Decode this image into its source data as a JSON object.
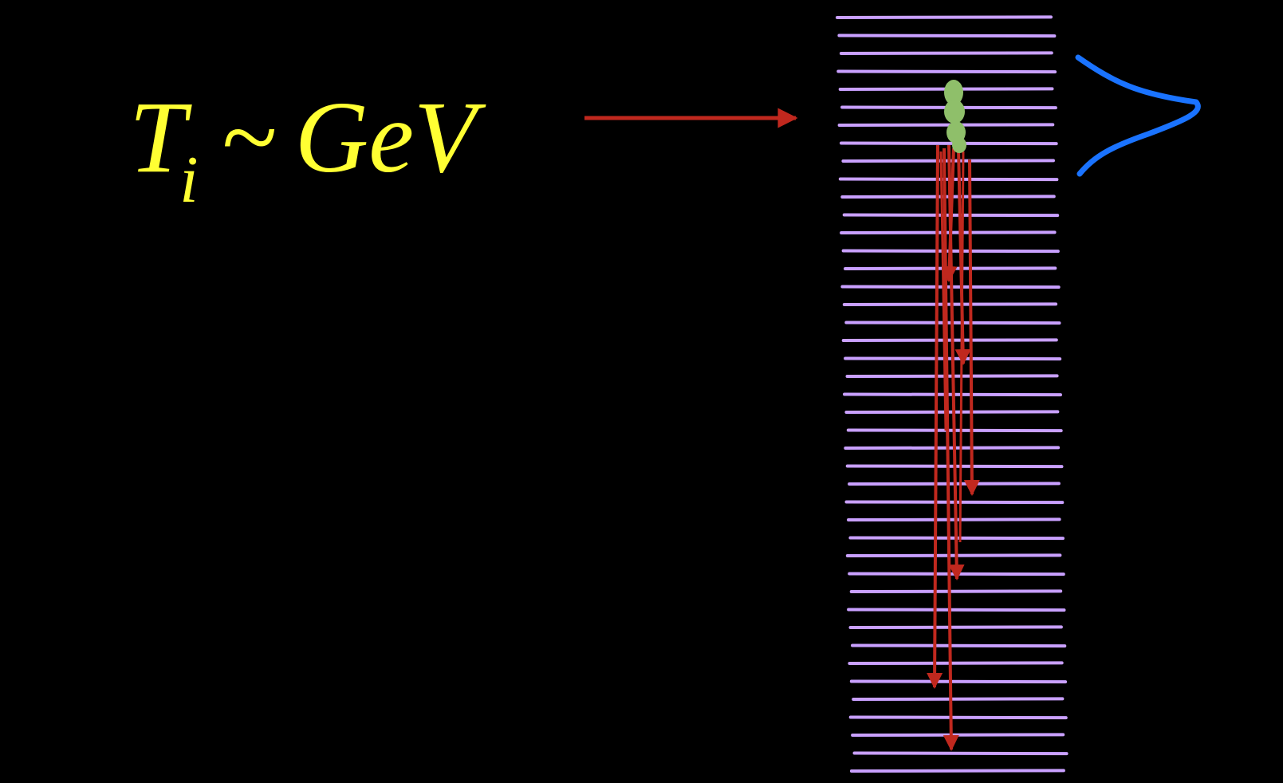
{
  "formula": {
    "variable": "T",
    "subscript": "i",
    "relation": "~",
    "unit": "GeV"
  },
  "colors": {
    "background": "#000000",
    "text": "#ffff33",
    "arrows": "#c0281e",
    "lines": "#c9a0ff",
    "source_blob": "#8fbf6a",
    "profile_curve": "#1a73ff"
  },
  "icons": {
    "pointer": "right-arrow-icon",
    "source": "blob-icon",
    "profile": "bell-curve-icon"
  }
}
